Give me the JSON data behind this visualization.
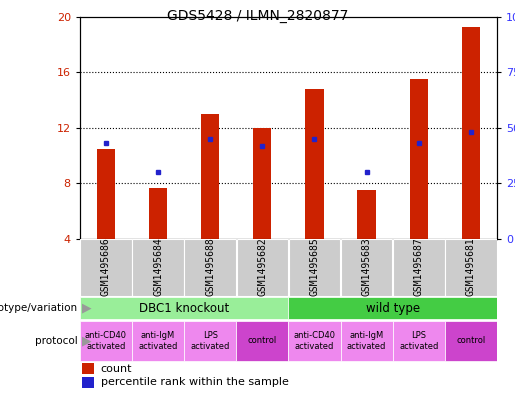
{
  "title": "GDS5428 / ILMN_2820877",
  "samples": [
    "GSM1495686",
    "GSM1495684",
    "GSM1495688",
    "GSM1495682",
    "GSM1495685",
    "GSM1495683",
    "GSM1495687",
    "GSM1495681"
  ],
  "count_values": [
    10.5,
    7.7,
    13.0,
    12.0,
    14.8,
    7.5,
    15.5,
    19.3
  ],
  "percentile_values": [
    43,
    30,
    45,
    42,
    45,
    30,
    43,
    48
  ],
  "ylim_left": [
    4,
    20
  ],
  "ylim_right": [
    0,
    100
  ],
  "yticks_left": [
    4,
    8,
    12,
    16,
    20
  ],
  "yticks_right": [
    0,
    25,
    50,
    75,
    100
  ],
  "bar_color": "#cc2200",
  "dot_color": "#2222cc",
  "bar_width": 0.35,
  "grid_yticks": [
    8,
    12,
    16
  ],
  "genotype_groups": [
    {
      "label": "DBC1 knockout",
      "start": 0,
      "end": 4,
      "color": "#99ee99"
    },
    {
      "label": "wild type",
      "start": 4,
      "end": 8,
      "color": "#44cc44"
    }
  ],
  "protocol_groups": [
    {
      "label": "anti-CD40\nactivated",
      "start": 0,
      "end": 1,
      "color": "#ee88ee"
    },
    {
      "label": "anti-IgM\nactivated",
      "start": 1,
      "end": 2,
      "color": "#ee88ee"
    },
    {
      "label": "LPS\nactivated",
      "start": 2,
      "end": 3,
      "color": "#ee88ee"
    },
    {
      "label": "control",
      "start": 3,
      "end": 4,
      "color": "#cc44cc"
    },
    {
      "label": "anti-CD40\nactivated",
      "start": 4,
      "end": 5,
      "color": "#ee88ee"
    },
    {
      "label": "anti-IgM\nactivated",
      "start": 5,
      "end": 6,
      "color": "#ee88ee"
    },
    {
      "label": "LPS\nactivated",
      "start": 6,
      "end": 7,
      "color": "#ee88ee"
    },
    {
      "label": "control",
      "start": 7,
      "end": 8,
      "color": "#cc44cc"
    }
  ],
  "sample_bg_color": "#cccccc",
  "left_axis_color": "#cc2200",
  "right_axis_color": "#3333ff",
  "arrow_color": "#999999",
  "tick_fontsize": 8,
  "title_fontsize": 10,
  "sample_fontsize": 7,
  "annot_fontsize": 7.5,
  "proto_fontsize": 6,
  "legend_fontsize": 8
}
